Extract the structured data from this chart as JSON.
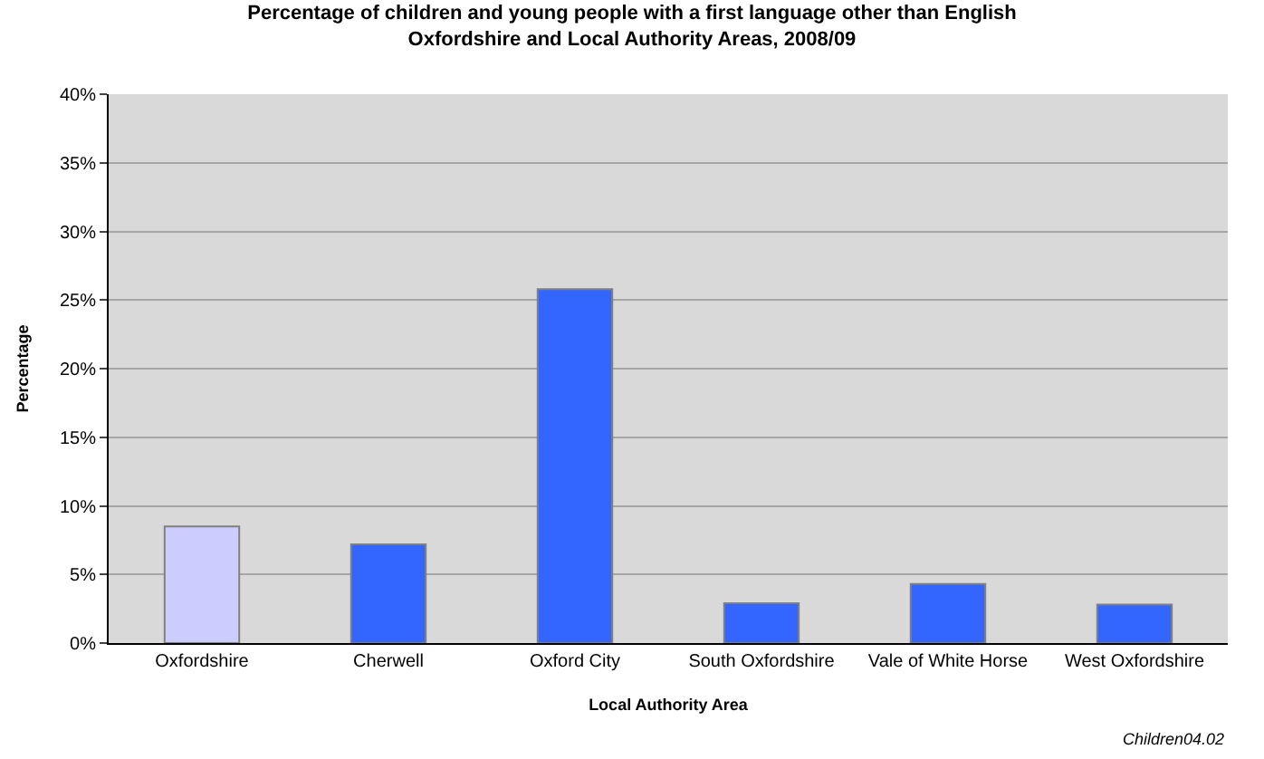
{
  "chart_data": {
    "type": "bar",
    "title": "Percentage of children and young people with a first language other than English\nOxfordshire and Local Authority Areas, 2008/09",
    "xlabel": "Local Authority Area",
    "ylabel": "Percentage",
    "categories": [
      "Oxfordshire",
      "Cherwell",
      "Oxford City",
      "South Oxfordshire",
      "Vale of White Horse",
      "West Oxfordshire"
    ],
    "values": [
      8.5,
      7.2,
      25.8,
      2.9,
      4.3,
      2.8
    ],
    "colors": [
      "#ccccff",
      "#3366ff",
      "#3366ff",
      "#3366ff",
      "#3366ff",
      "#3366ff"
    ],
    "ylim": [
      0,
      40
    ],
    "yticks": [
      {
        "value": 0,
        "label": "0%"
      },
      {
        "value": 5,
        "label": "5%"
      },
      {
        "value": 10,
        "label": "10%"
      },
      {
        "value": 15,
        "label": "15%"
      },
      {
        "value": 20,
        "label": "20%"
      },
      {
        "value": 25,
        "label": "25%"
      },
      {
        "value": 30,
        "label": "30%"
      },
      {
        "value": 35,
        "label": "35%"
      },
      {
        "value": 40,
        "label": "40%"
      }
    ],
    "grid": "y",
    "annotations": [
      "Children04.02"
    ]
  }
}
